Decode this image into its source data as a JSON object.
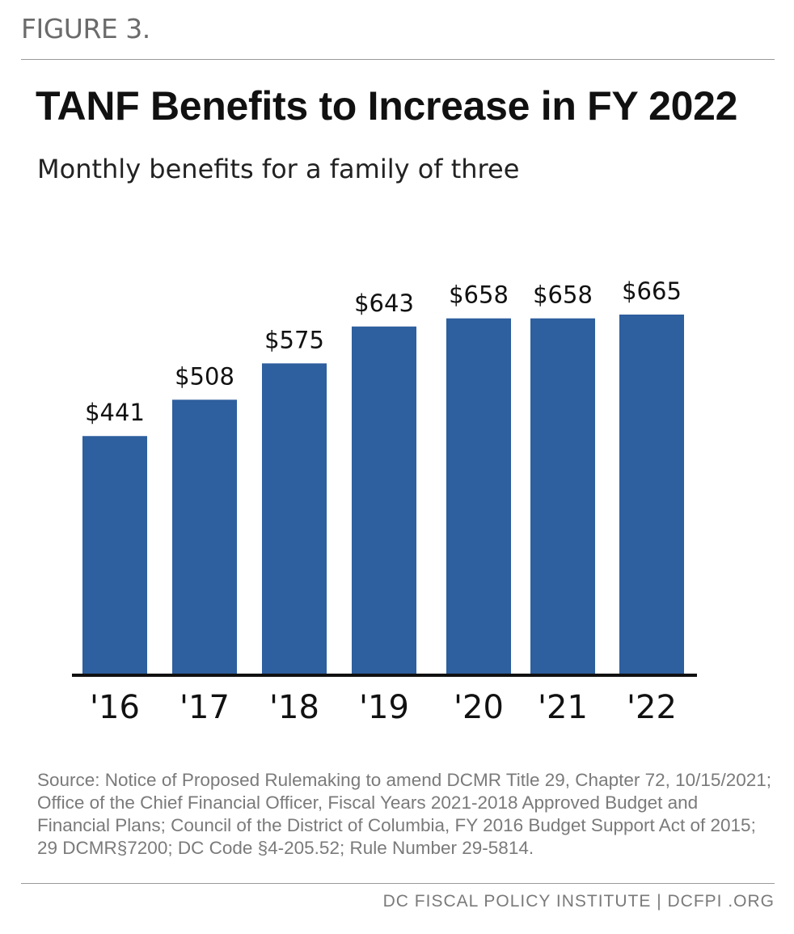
{
  "figure_label": "FIGURE 3.",
  "chart_data": {
    "type": "bar",
    "title": "TANF Benefits to Increase in FY 2022",
    "subtitle": "Monthly benefits for a family of three",
    "categories": [
      "'16",
      "'17",
      "'18",
      "'19",
      "'20",
      "'21",
      "'22"
    ],
    "values": [
      441,
      508,
      575,
      643,
      658,
      658,
      665
    ],
    "data_labels": [
      "$441",
      "$508",
      "$575",
      "$643",
      "$658",
      "$658",
      "$665"
    ],
    "ylim": [
      0,
      665
    ],
    "grid": false,
    "legend": "none",
    "bar_color": "#2e5f9e",
    "axis_color": "#111111"
  },
  "source": "Source: Notice of Proposed Rulemaking to amend DCMR Title 29, Chapter 72, 10/15/2021; Office of the Chief Financial Officer, Fiscal Years 2021-2018 Approved Budget and Financial Plans; Council of the District of Columbia, FY 2016 Budget Support Act of 2015; 29 DCMR§7200; DC Code §4-205.52; Rule Number 29-5814.",
  "footer": "DC FISCAL POLICY INSTITUTE  |  DCFPI .ORG"
}
